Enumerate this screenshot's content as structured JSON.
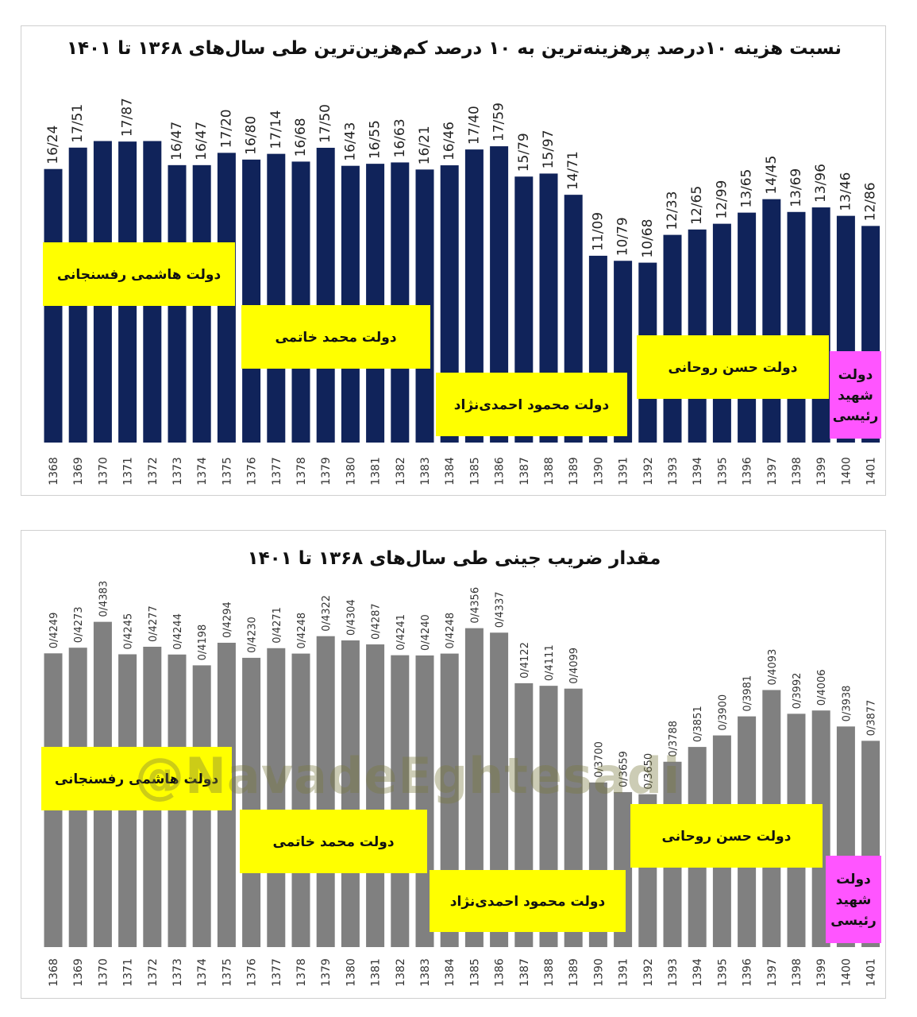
{
  "watermark": {
    "handle": "@NavadeEghtesadi"
  },
  "charts": [
    {
      "type": "bar",
      "title": "نسبت هزینه ۱۰درصد پرهزینه‌ترین به ۱۰ درصد کم‌هزین‌ترین طی سال‌های ۱۳۶۸ تا ۱۴۰۱",
      "bar_color": "#10235a",
      "categories": [
        "1368",
        "1369",
        "1370",
        "1371",
        "1372",
        "1373",
        "1374",
        "1375",
        "1376",
        "1377",
        "1378",
        "1379",
        "1380",
        "1381",
        "1382",
        "1383",
        "1384",
        "1385",
        "1386",
        "1387",
        "1388",
        "1389",
        "1390",
        "1391",
        "1392",
        "1393",
        "1394",
        "1395",
        "1396",
        "1397",
        "1398",
        "1399",
        "1400",
        "1401"
      ],
      "values": [
        16.24,
        17.51,
        17.9,
        17.87,
        17.9,
        16.47,
        16.47,
        17.2,
        16.8,
        17.14,
        16.68,
        17.5,
        16.43,
        16.55,
        16.63,
        16.21,
        16.46,
        17.4,
        17.59,
        15.79,
        15.97,
        14.71,
        11.09,
        10.79,
        10.68,
        12.33,
        12.65,
        12.99,
        13.65,
        14.45,
        13.69,
        13.96,
        13.46,
        12.86
      ],
      "labels": [
        "16/24",
        "17/51",
        "",
        "17/87",
        "",
        "16/47",
        "16/47",
        "17/20",
        "16/80",
        "17/14",
        "16/68",
        "17/50",
        "16/43",
        "16/55",
        "16/63",
        "16/21",
        "16/46",
        "17/40",
        "17/59",
        "15/79",
        "15/97",
        "14/71",
        "11/09",
        "10/79",
        "10/68",
        "12/33",
        "12/65",
        "12/99",
        "13/65",
        "14/45",
        "13/69",
        "13/96",
        "13/46",
        "12/86"
      ],
      "ylim": [
        0,
        20
      ],
      "eras": [
        {
          "name": "دولت هاشمی رفسنجانی",
          "color": "#ffff00",
          "lines": [
            "دولت هاشمی رفسنجانی"
          ]
        },
        {
          "name": "دولت محمد خاتمی",
          "color": "#ffff00",
          "lines": [
            "دولت محمد خاتمی"
          ]
        },
        {
          "name": "دولت محمود احمدی‌نژاد",
          "color": "#ffff00",
          "lines": [
            "دولت محمود احمدی‌نژاد"
          ]
        },
        {
          "name": "دولت حسن روحانی",
          "color": "#ffff00",
          "lines": [
            "دولت حسن روحانی"
          ]
        },
        {
          "name": "دولت شهید رئیسی",
          "color": "#ff55ff",
          "lines": [
            "دولت",
            "شهید",
            "رئیسی"
          ]
        }
      ]
    },
    {
      "type": "bar",
      "title": "مقدار ضریب جینی طی سال‌های ۱۳۶۸ تا ۱۴۰۱",
      "bar_color": "#808080",
      "categories": [
        "1368",
        "1369",
        "1370",
        "1371",
        "1372",
        "1373",
        "1374",
        "1375",
        "1376",
        "1377",
        "1378",
        "1379",
        "1380",
        "1381",
        "1382",
        "1383",
        "1384",
        "1385",
        "1386",
        "1387",
        "1388",
        "1389",
        "1390",
        "1391",
        "1392",
        "1393",
        "1394",
        "1395",
        "1396",
        "1397",
        "1398",
        "1399",
        "1400",
        "1401"
      ],
      "values": [
        0.4249,
        0.4273,
        0.4383,
        0.4245,
        0.4277,
        0.4244,
        0.4198,
        0.4294,
        0.423,
        0.4271,
        0.4248,
        0.4322,
        0.4304,
        0.4287,
        0.4241,
        0.424,
        0.4248,
        0.4356,
        0.4337,
        0.4122,
        0.4111,
        0.4099,
        0.37,
        0.3659,
        0.365,
        0.3788,
        0.3851,
        0.39,
        0.3981,
        0.4093,
        0.3992,
        0.4006,
        0.3938,
        0.3877
      ],
      "labels": [
        "0/4249",
        "0/4273",
        "0/4383",
        "0/4245",
        "0/4277",
        "0/4244",
        "0/4198",
        "0/4294",
        "0/4230",
        "0/4271",
        "0/4248",
        "0/4322",
        "0/4304",
        "0/4287",
        "0/4241",
        "0/4240",
        "0/4248",
        "0/4356",
        "0/4337",
        "0/4122",
        "0/4111",
        "0/4099",
        "0/3700",
        "0/3659",
        "0/3650",
        "0/3788",
        "0/3851",
        "0/3900",
        "0/3981",
        "0/4093",
        "0/3992",
        "0/4006",
        "0/3938",
        "0/3877"
      ],
      "ylim": [
        0.3,
        0.45
      ],
      "eras": [
        {
          "name": "دولت هاشمی رفسنجانی",
          "color": "#ffff00",
          "lines": [
            "دولت هاشمی رفسنجانی"
          ]
        },
        {
          "name": "دولت محمد خاتمی",
          "color": "#ffff00",
          "lines": [
            "دولت محمد خاتمی"
          ]
        },
        {
          "name": "دولت محمود احمدی‌نژاد",
          "color": "#ffff00",
          "lines": [
            "دولت محمود احمدی‌نژاد"
          ]
        },
        {
          "name": "دولت حسن روحانی",
          "color": "#ffff00",
          "lines": [
            "دولت حسن روحانی"
          ]
        },
        {
          "name": "دولت شهید رئیسی",
          "color": "#ff55ff",
          "lines": [
            "دولت",
            "شهید",
            "رئیسی"
          ]
        }
      ]
    }
  ]
}
